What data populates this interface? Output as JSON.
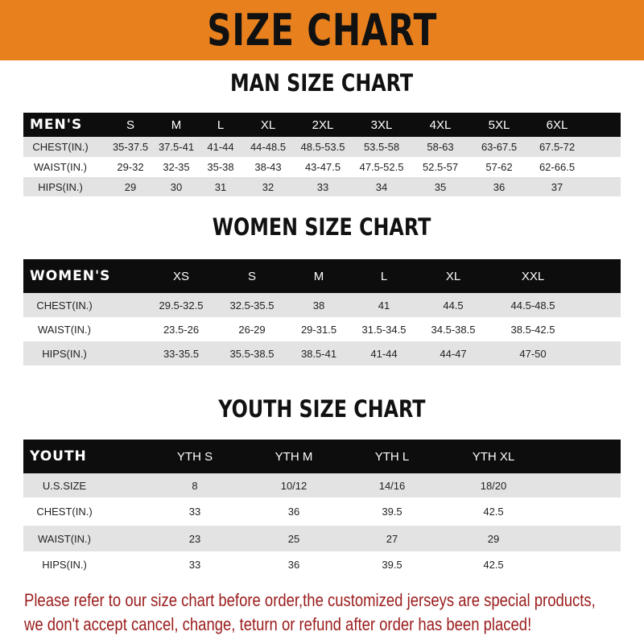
{
  "banner_title": "SIZE CHART",
  "colors": {
    "banner": "#E8801E",
    "header_row": "#0d0d0d",
    "stripe": "#e3e3e3",
    "note": "#9a1c1c"
  },
  "men": {
    "title": "MAN SIZE CHART",
    "header": [
      "MEN'S",
      "S",
      "M",
      "L",
      "XL",
      "2XL",
      "3XL",
      "4XL",
      "5XL",
      "6XL"
    ],
    "rows": [
      [
        "CHEST(IN.)",
        "35-37.5",
        "37.5-41",
        "41-44",
        "44-48.5",
        "48.5-53.5",
        "53.5-58",
        "58-63",
        "63-67.5",
        "67.5-72"
      ],
      [
        "WAIST(IN.)",
        "29-32",
        "32-35",
        "35-38",
        "38-43",
        "43-47.5",
        "47.5-52.5",
        "52.5-57",
        "57-62",
        "62-66.5"
      ],
      [
        "HIPS(IN.)",
        "29",
        "30",
        "31",
        "32",
        "33",
        "34",
        "35",
        "36",
        "37"
      ]
    ]
  },
  "women": {
    "title": "WOMEN SIZE CHART",
    "header": [
      "WOMEN'S",
      "XS",
      "S",
      "M",
      "L",
      "XL",
      "XXL"
    ],
    "rows": [
      [
        "CHEST(IN.)",
        "29.5-32.5",
        "32.5-35.5",
        "38",
        "41",
        "44.5",
        "44.5-48.5"
      ],
      [
        "WAIST(IN.)",
        "23.5-26",
        "26-29",
        "29-31.5",
        "31.5-34.5",
        "34.5-38.5",
        "38.5-42.5"
      ],
      [
        "HIPS(IN.)",
        "33-35.5",
        "35.5-38.5",
        "38.5-41",
        "41-44",
        "44-47",
        "47-50"
      ]
    ]
  },
  "youth": {
    "title": "YOUTH SIZE CHART",
    "header": [
      "YOUTH",
      "YTH S",
      "YTH M",
      "YTH L",
      "YTH XL"
    ],
    "rows": [
      [
        "U.S.SIZE",
        "8",
        "10/12",
        "14/16",
        "18/20"
      ],
      [
        "CHEST(IN.)",
        "33",
        "36",
        "39.5",
        "42.5"
      ],
      [
        "WAIST(IN.)",
        "23",
        "25",
        "27",
        "29"
      ],
      [
        "HIPS(IN.)",
        "33",
        "36",
        "39.5",
        "42.5"
      ]
    ]
  },
  "note": {
    "line1": "Please refer to our size chart before order,the customized jerseys are special products,",
    "line2": "we don't accept cancel, change, teturn or refund after order has been placed!"
  }
}
